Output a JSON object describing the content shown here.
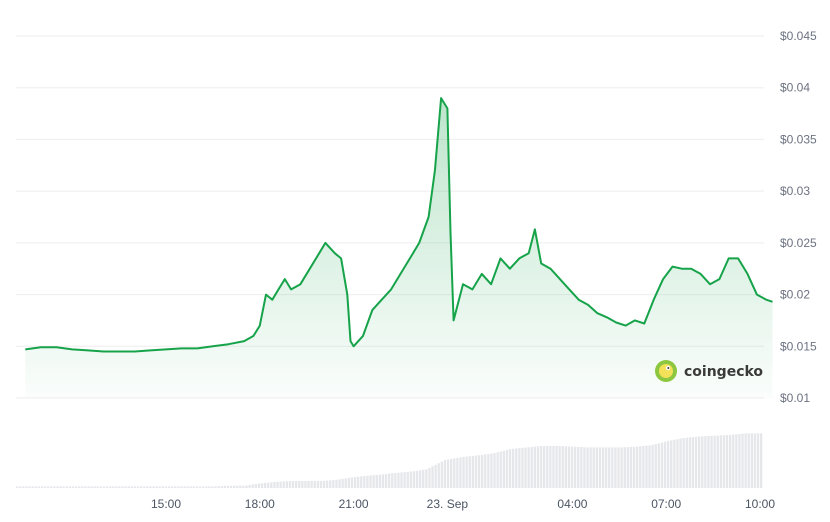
{
  "chart_data": {
    "type": "area",
    "title": "",
    "xlabel": "",
    "ylabel": "",
    "ylim": [
      0.01,
      0.045
    ],
    "y_ticks": [
      {
        "value": 0.045,
        "label": "$0.045"
      },
      {
        "value": 0.04,
        "label": "$0.04"
      },
      {
        "value": 0.035,
        "label": "$0.035"
      },
      {
        "value": 0.03,
        "label": "$0.03"
      },
      {
        "value": 0.025,
        "label": "$0.025"
      },
      {
        "value": 0.02,
        "label": "$0.02"
      },
      {
        "value": 0.015,
        "label": "$0.015"
      },
      {
        "value": 0.01,
        "label": "$0.01"
      }
    ],
    "x_ticks": [
      {
        "hour": 15,
        "label": "15:00"
      },
      {
        "hour": 18,
        "label": "18:00"
      },
      {
        "hour": 21,
        "label": "21:00"
      },
      {
        "hour": 24,
        "label": "23. Sep"
      },
      {
        "hour": 28,
        "label": "04:00"
      },
      {
        "hour": 31,
        "label": "07:00"
      },
      {
        "hour": 34,
        "label": "10:00"
      }
    ],
    "grid": true,
    "colors": {
      "line": "#16a34a",
      "fill": "#16a34a",
      "volume": "#e5e7eb",
      "grid": "#eeeeee"
    },
    "series": [
      {
        "values": [
          [
            10.5,
            0.0147
          ],
          [
            11.0,
            0.0149
          ],
          [
            11.5,
            0.0149
          ],
          [
            12.0,
            0.0147
          ],
          [
            12.5,
            0.0146
          ],
          [
            13.0,
            0.0145
          ],
          [
            13.5,
            0.0145
          ],
          [
            14.0,
            0.0145
          ],
          [
            14.5,
            0.0146
          ],
          [
            15.0,
            0.0147
          ],
          [
            15.5,
            0.0148
          ],
          [
            16.0,
            0.0148
          ],
          [
            16.5,
            0.015
          ],
          [
            17.0,
            0.0152
          ],
          [
            17.5,
            0.0155
          ],
          [
            17.8,
            0.016
          ],
          [
            18.0,
            0.017
          ],
          [
            18.2,
            0.02
          ],
          [
            18.4,
            0.0195
          ],
          [
            18.6,
            0.0205
          ],
          [
            18.8,
            0.0215
          ],
          [
            19.0,
            0.0205
          ],
          [
            19.3,
            0.021
          ],
          [
            19.6,
            0.0225
          ],
          [
            19.9,
            0.024
          ],
          [
            20.1,
            0.025
          ],
          [
            20.4,
            0.024
          ],
          [
            20.6,
            0.0235
          ],
          [
            20.8,
            0.02
          ],
          [
            20.9,
            0.0155
          ],
          [
            21.0,
            0.015
          ],
          [
            21.3,
            0.016
          ],
          [
            21.6,
            0.0185
          ],
          [
            21.9,
            0.0195
          ],
          [
            22.2,
            0.0205
          ],
          [
            22.5,
            0.022
          ],
          [
            22.8,
            0.0235
          ],
          [
            23.1,
            0.025
          ],
          [
            23.4,
            0.0275
          ],
          [
            23.6,
            0.032
          ],
          [
            23.8,
            0.039
          ],
          [
            24.0,
            0.038
          ],
          [
            24.1,
            0.026
          ],
          [
            24.2,
            0.0175
          ],
          [
            24.5,
            0.021
          ],
          [
            24.8,
            0.0205
          ],
          [
            25.1,
            0.022
          ],
          [
            25.4,
            0.021
          ],
          [
            25.7,
            0.0235
          ],
          [
            26.0,
            0.0225
          ],
          [
            26.3,
            0.0235
          ],
          [
            26.6,
            0.024
          ],
          [
            26.8,
            0.0263
          ],
          [
            27.0,
            0.023
          ],
          [
            27.3,
            0.0225
          ],
          [
            27.6,
            0.0215
          ],
          [
            27.9,
            0.0205
          ],
          [
            28.2,
            0.0195
          ],
          [
            28.5,
            0.019
          ],
          [
            28.8,
            0.0182
          ],
          [
            29.1,
            0.0178
          ],
          [
            29.4,
            0.0173
          ],
          [
            29.7,
            0.017
          ],
          [
            30.0,
            0.0175
          ],
          [
            30.3,
            0.0172
          ],
          [
            30.6,
            0.0195
          ],
          [
            30.9,
            0.0215
          ],
          [
            31.2,
            0.0227
          ],
          [
            31.5,
            0.0225
          ],
          [
            31.8,
            0.0225
          ],
          [
            32.1,
            0.022
          ],
          [
            32.4,
            0.021
          ],
          [
            32.7,
            0.0215
          ],
          [
            33.0,
            0.0235
          ],
          [
            33.3,
            0.0235
          ],
          [
            33.6,
            0.022
          ],
          [
            33.9,
            0.02
          ],
          [
            34.2,
            0.0195
          ],
          [
            34.4,
            0.0193
          ]
        ]
      }
    ],
    "volume": [
      [
        10.5,
        0.02
      ],
      [
        11.0,
        0.02
      ],
      [
        11.5,
        0.02
      ],
      [
        12.0,
        0.02
      ],
      [
        12.5,
        0.02
      ],
      [
        13.0,
        0.02
      ],
      [
        13.5,
        0.02
      ],
      [
        14.0,
        0.02
      ],
      [
        14.5,
        0.02
      ],
      [
        15.0,
        0.02
      ],
      [
        15.5,
        0.02
      ],
      [
        16.0,
        0.02
      ],
      [
        16.5,
        0.02
      ],
      [
        17.0,
        0.03
      ],
      [
        17.5,
        0.03
      ],
      [
        18.0,
        0.06
      ],
      [
        18.5,
        0.08
      ],
      [
        19.0,
        0.09
      ],
      [
        19.5,
        0.09
      ],
      [
        20.0,
        0.09
      ],
      [
        20.5,
        0.11
      ],
      [
        21.0,
        0.14
      ],
      [
        21.5,
        0.16
      ],
      [
        22.0,
        0.18
      ],
      [
        22.5,
        0.2
      ],
      [
        23.0,
        0.22
      ],
      [
        23.3,
        0.24
      ],
      [
        23.6,
        0.3
      ],
      [
        23.9,
        0.36
      ],
      [
        24.2,
        0.38
      ],
      [
        24.5,
        0.4
      ],
      [
        25.0,
        0.42
      ],
      [
        25.5,
        0.45
      ],
      [
        26.0,
        0.5
      ],
      [
        26.5,
        0.52
      ],
      [
        27.0,
        0.54
      ],
      [
        27.5,
        0.54
      ],
      [
        28.0,
        0.53
      ],
      [
        28.5,
        0.52
      ],
      [
        29.0,
        0.52
      ],
      [
        29.5,
        0.52
      ],
      [
        30.0,
        0.53
      ],
      [
        30.5,
        0.55
      ],
      [
        31.0,
        0.6
      ],
      [
        31.5,
        0.64
      ],
      [
        32.0,
        0.66
      ],
      [
        32.5,
        0.67
      ],
      [
        33.0,
        0.68
      ],
      [
        33.5,
        0.7
      ],
      [
        34.0,
        0.7
      ],
      [
        34.4,
        0.7
      ]
    ]
  },
  "watermark": {
    "text": "coingecko"
  }
}
